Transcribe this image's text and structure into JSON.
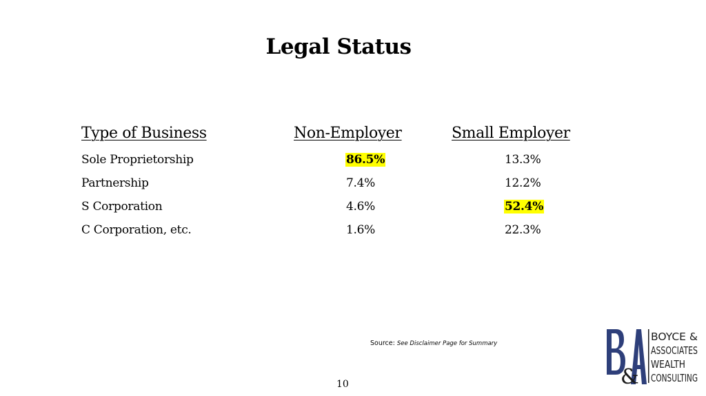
{
  "title": "Legal Status",
  "table": {
    "headers": [
      "Type of Business",
      "Non-Employer",
      "Small Employer"
    ],
    "rows": [
      {
        "type": "Sole Proprietorship",
        "non_employer": "86.5%",
        "small_employer": "13.3%"
      },
      {
        "type": "Partnership",
        "non_employer": "7.4%",
        "small_employer": "12.2%"
      },
      {
        "type": "S Corporation",
        "non_employer": "4.6%",
        "small_employer": "52.4%"
      },
      {
        "type": "C Corporation, etc.",
        "non_employer": "1.6%",
        "small_employer": "22.3%"
      }
    ],
    "highlight_color": "#ffff00"
  },
  "source": {
    "label": "Source:",
    "note": "See Disclaimer Page for Summary"
  },
  "page_number": "10",
  "logo": {
    "monogram": "B&A",
    "lines": [
      "BOYCE &",
      "ASSOCIATES",
      "WEALTH",
      "CONSULTING"
    ],
    "brand_color": "#2e3f7a"
  }
}
